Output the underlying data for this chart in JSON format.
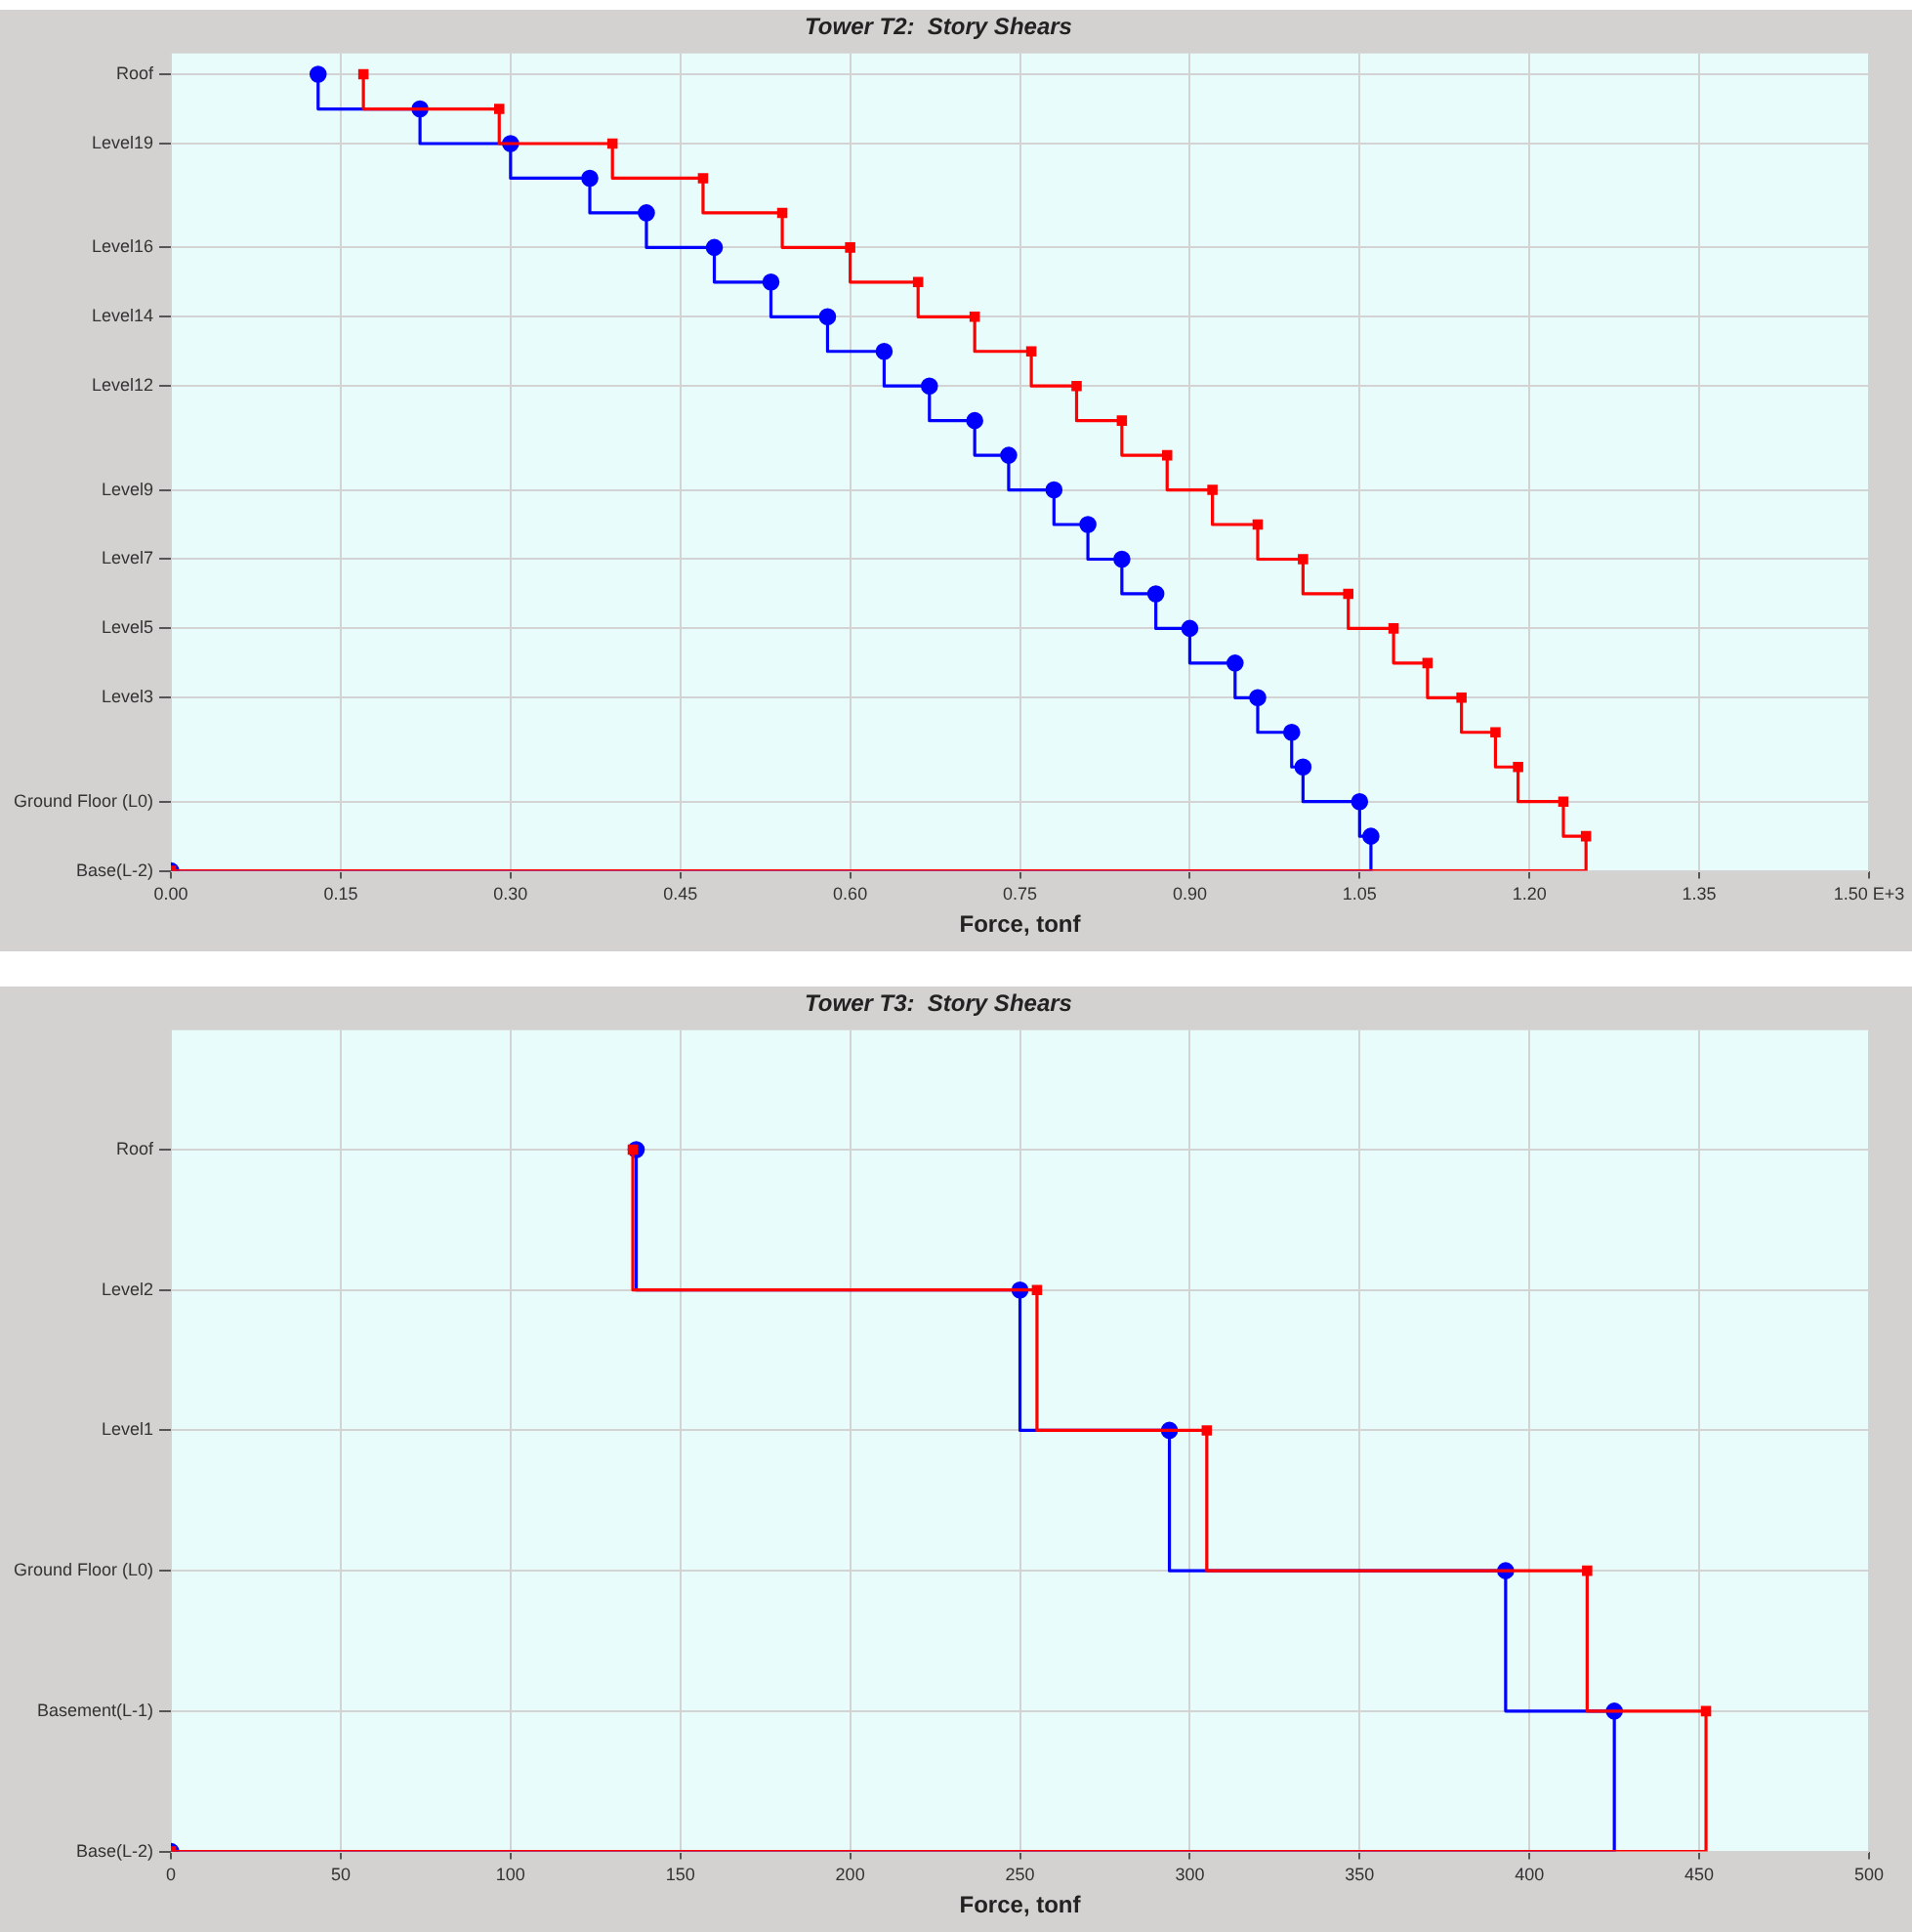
{
  "chart_data": [
    {
      "type": "step",
      "orientation": "horizontal",
      "title": "Tower T2:  Story Shears",
      "xlabel": "Force, tonf",
      "grid": true,
      "xlim": [
        0,
        1.5
      ],
      "xticks": [
        {
          "value": 0,
          "label": "0.00"
        },
        {
          "value": 0.15,
          "label": "0.15"
        },
        {
          "value": 0.3,
          "label": "0.30"
        },
        {
          "value": 0.45,
          "label": "0.45"
        },
        {
          "value": 0.6,
          "label": "0.60"
        },
        {
          "value": 0.75,
          "label": "0.75"
        },
        {
          "value": 0.9,
          "label": "0.90"
        },
        {
          "value": 1.05,
          "label": "1.05"
        },
        {
          "value": 1.2,
          "label": "1.20"
        },
        {
          "value": 1.35,
          "label": "1.35"
        },
        {
          "value": 1.5,
          "label": "1.50 E+3"
        }
      ],
      "categories": [
        "Roof",
        null,
        "Level19",
        null,
        null,
        "Level16",
        null,
        "Level14",
        null,
        "Level12",
        null,
        null,
        "Level9",
        null,
        "Level7",
        null,
        "Level5",
        null,
        "Level3",
        null,
        null,
        "Ground Floor (L0)",
        null,
        "Base(L-2)"
      ],
      "series": [
        {
          "color": "#0000ff",
          "marker": "circle",
          "values": [
            0.13,
            0.22,
            0.3,
            0.37,
            0.42,
            0.48,
            0.53,
            0.58,
            0.63,
            0.67,
            0.71,
            0.74,
            0.78,
            0.81,
            0.84,
            0.87,
            0.9,
            0.94,
            0.96,
            0.99,
            1.0,
            1.05,
            1.06,
            0
          ]
        },
        {
          "color": "#ff0000",
          "marker": "square",
          "values": [
            0.17,
            0.29,
            0.39,
            0.47,
            0.54,
            0.6,
            0.66,
            0.71,
            0.76,
            0.8,
            0.84,
            0.88,
            0.92,
            0.96,
            1.0,
            1.04,
            1.08,
            1.11,
            1.14,
            1.17,
            1.19,
            1.23,
            1.25,
            0
          ]
        }
      ]
    },
    {
      "type": "step",
      "orientation": "horizontal",
      "title": "Tower T3:  Story Shears",
      "xlabel": "Force, tonf",
      "grid": true,
      "xlim": [
        0,
        500
      ],
      "xticks": [
        0,
        50,
        100,
        150,
        200,
        250,
        300,
        350,
        400,
        450,
        500
      ],
      "categories": [
        "Roof",
        "Level2",
        "Level1",
        "Ground Floor (L0)",
        "Basement(L-1)",
        "Base(L-2)"
      ],
      "series": [
        {
          "color": "#0000ff",
          "marker": "circle",
          "values": [
            137,
            250,
            294,
            393,
            425,
            0
          ]
        },
        {
          "color": "#ff0000",
          "marker": "square",
          "values": [
            136,
            255,
            305,
            417,
            452,
            0
          ]
        }
      ]
    }
  ]
}
